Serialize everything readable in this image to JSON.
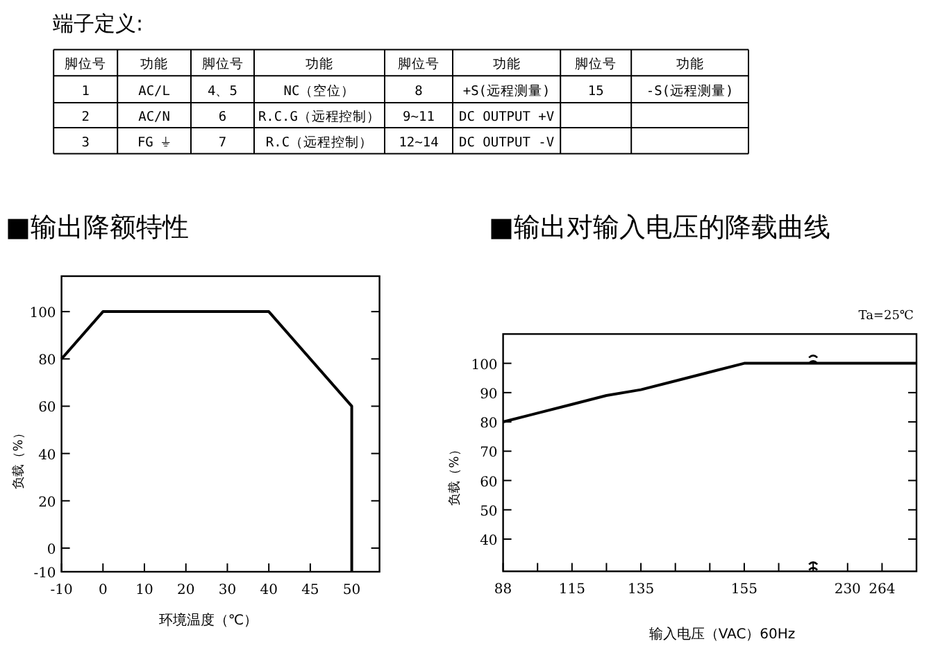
{
  "chart_data": [
    {
      "type": "other",
      "title": "端子定义:",
      "categories": [
        "脚位号",
        "功能",
        "脚位号",
        "功能",
        "脚位号",
        "功能",
        "脚位号",
        "功能"
      ],
      "cells": [
        [
          "1",
          "AC/L",
          "4、5",
          "NC（空位）",
          "8",
          "+S(远程测量)",
          "15",
          "-S(远程测量)"
        ],
        [
          "2",
          "AC/N",
          "6",
          "R.C.G（远程控制）",
          "9~11",
          "DC OUTPUT +V",
          null,
          null
        ],
        [
          "3",
          "FG ⏚",
          "7",
          "R.C（远程控制）",
          "12~14",
          "DC OUTPUT -V",
          null,
          null
        ]
      ]
    },
    {
      "type": "line",
      "title": "■输出降额特性",
      "xlabel": "环境温度（℃）",
      "ylabel": "负载（%）",
      "categories": [
        "-10",
        "0",
        "10",
        "20",
        "30",
        "40",
        "45",
        "50"
      ],
      "series": [
        {
          "color": "#000000",
          "x": [
            "-10",
            "0",
            "40",
            "50",
            "50"
          ],
          "values": [
            80,
            100,
            100,
            60,
            -10
          ]
        }
      ],
      "ylim": [
        -10,
        115
      ],
      "yticks": [
        -10,
        0,
        20,
        40,
        60,
        80,
        100
      ]
    },
    {
      "type": "line",
      "title": "■输出对输入电压的降载曲线",
      "xlabel": "输入电压（VAC）60Hz",
      "ylabel": "负载（%）",
      "annotations": [
        "Ta=25℃"
      ],
      "categories": [
        "88",
        null,
        "115",
        null,
        "135",
        null,
        null,
        "155",
        null,
        null,
        "230",
        "264",
        null
      ],
      "series": [
        {
          "color": "#000000",
          "values": [
            80,
            83,
            86,
            89,
            91,
            94,
            97,
            100,
            100,
            100,
            100,
            100,
            100
          ]
        }
      ],
      "ylim": [
        29,
        110
      ],
      "yticks": [
        40,
        50,
        60,
        70,
        80,
        90,
        100
      ]
    }
  ]
}
